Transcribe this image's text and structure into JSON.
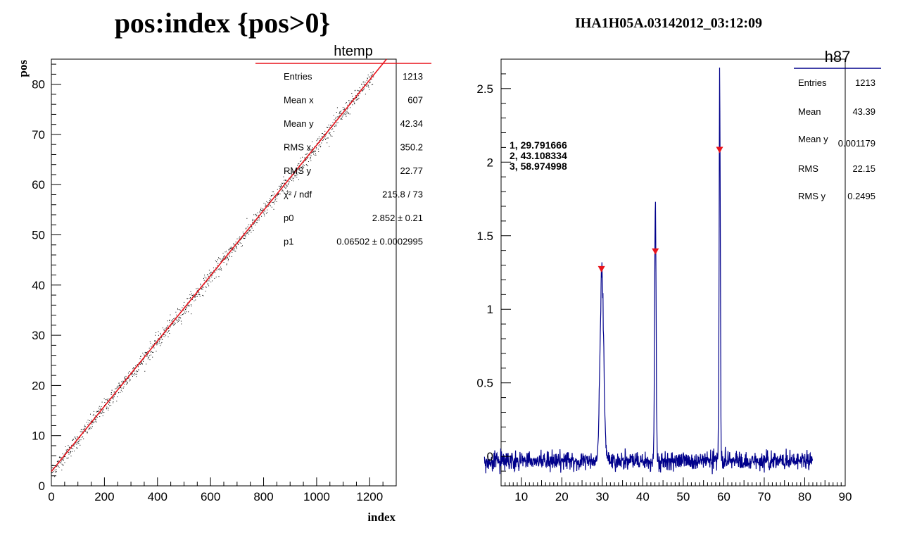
{
  "chart_data": [
    {
      "type": "scatter",
      "title": "pos:index {pos>0}",
      "xlabel": "index",
      "ylabel": "pos",
      "xlim": [
        0,
        1300
      ],
      "ylim": [
        0,
        85
      ],
      "x_ticks": [
        0,
        200,
        400,
        600,
        800,
        1000,
        1200
      ],
      "y_ticks": [
        0,
        10,
        20,
        30,
        40,
        50,
        60,
        70,
        80
      ],
      "stats_box": {
        "name": "htemp",
        "rows": [
          {
            "label": "Entries",
            "value": "1213"
          },
          {
            "label": "Mean x",
            "value": "607"
          },
          {
            "label": "Mean y",
            "value": "42.34"
          },
          {
            "label": "RMS x",
            "value": "350.2"
          },
          {
            "label": "RMS y",
            "value": "22.77"
          },
          {
            "label": "χ² / ndf",
            "value": "215.8 / 73"
          },
          {
            "label": "p0",
            "value": "2.852 ±  0.21"
          },
          {
            "label": "p1",
            "value": "0.06502 ± 0.0002995"
          }
        ]
      },
      "fit": {
        "p0": 2.852,
        "p1": 0.06502,
        "color": "#e8141c"
      },
      "points": {
        "count": 1213,
        "x_start": 1,
        "x_end": 1213,
        "scatter_sigma": 0.8,
        "color": "#000000"
      }
    },
    {
      "type": "line",
      "title": "IHA1H05A.03142012_03:12:09",
      "xlim": [
        5,
        90
      ],
      "ylim": [
        -0.2,
        2.7
      ],
      "x_ticks": [
        10,
        20,
        30,
        40,
        50,
        60,
        70,
        80,
        90
      ],
      "y_ticks": [
        0,
        0.5,
        1,
        1.5,
        2,
        2.5
      ],
      "y_tick_labels": [
        "0",
        "0.5",
        "1",
        "1.5",
        "2",
        "2.5"
      ],
      "stats_box": {
        "name": "h87",
        "rows": [
          {
            "label": "Entries",
            "value": "1213"
          },
          {
            "label": "Mean",
            "value": "43.39"
          },
          {
            "label": "Mean y",
            "value": "0.001179"
          },
          {
            "label": "RMS",
            "value": "22.15"
          },
          {
            "label": "RMS y",
            "value": "0.2495"
          }
        ]
      },
      "annotations": [
        "1, 29.791666",
        "2, 43.108334",
        "3, 58.974998"
      ],
      "peak_markers": [
        {
          "x": 29.79,
          "y": 1.27
        },
        {
          "x": 43.11,
          "y": 1.39
        },
        {
          "x": 58.97,
          "y": 2.08
        }
      ],
      "series": {
        "x_start": 0.9,
        "x_end": 81.9,
        "baseline": -0.03,
        "noise": 0.03,
        "peaks": [
          {
            "center": 29.9,
            "height": 1.36,
            "width": 0.45
          },
          {
            "center": 43.1,
            "height": 1.88,
            "width": 0.18
          },
          {
            "center": 59.0,
            "height": 2.72,
            "width": 0.15
          }
        ],
        "color": "#00008b"
      },
      "marker_color": "#e8141c"
    }
  ]
}
